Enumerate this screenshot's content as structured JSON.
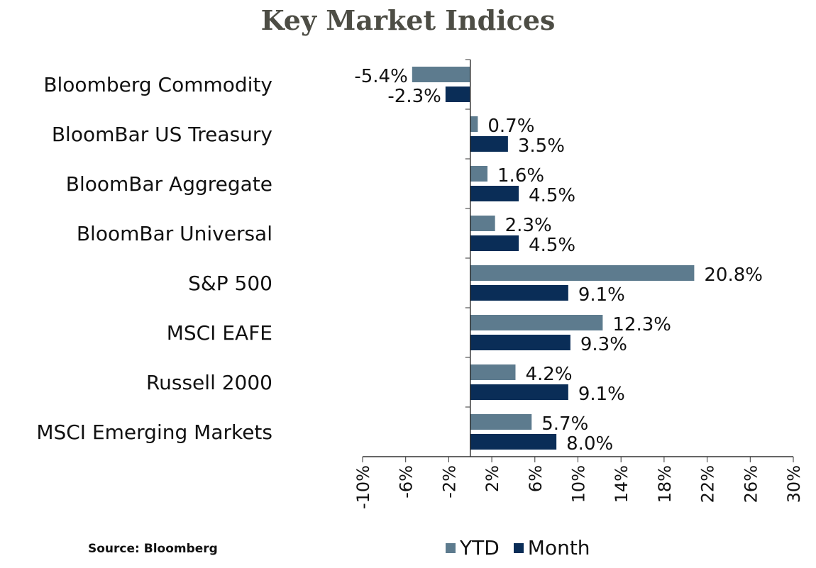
{
  "chart_data": {
    "type": "bar",
    "orientation": "horizontal",
    "title": "Key Market Indices",
    "categories": [
      "Bloomberg Commodity",
      "BloomBar US Treasury",
      "BloomBar Aggregate",
      "BloomBar Universal",
      "S&P 500",
      "MSCI EAFE",
      "Russell 2000",
      "MSCI Emerging Markets"
    ],
    "series": [
      {
        "name": "YTD",
        "color": "#5d7b8e",
        "values": [
          -5.4,
          0.7,
          1.6,
          2.3,
          20.8,
          12.3,
          4.2,
          5.7
        ],
        "labels": [
          "-5.4%",
          "0.7%",
          "1.6%",
          "2.3%",
          "20.8%",
          "12.3%",
          "4.2%",
          "5.7%"
        ]
      },
      {
        "name": "Month",
        "color": "#0a2d57",
        "values": [
          -2.3,
          3.5,
          4.5,
          4.5,
          9.1,
          9.3,
          9.1,
          8.0
        ],
        "labels": [
          "-2.3%",
          "3.5%",
          "4.5%",
          "4.5%",
          "9.1%",
          "9.3%",
          "9.1%",
          "8.0%"
        ]
      }
    ],
    "xlim": [
      -10,
      30
    ],
    "xticks": [
      -10,
      -6,
      -2,
      2,
      6,
      10,
      14,
      18,
      22,
      26,
      30
    ],
    "xtick_labels": [
      "-10%",
      "-6%",
      "-2%",
      "2%",
      "6%",
      "10%",
      "14%",
      "18%",
      "22%",
      "26%",
      "30%"
    ],
    "legend_position": "bottom",
    "grid": false
  },
  "source": "Source: Bloomberg"
}
